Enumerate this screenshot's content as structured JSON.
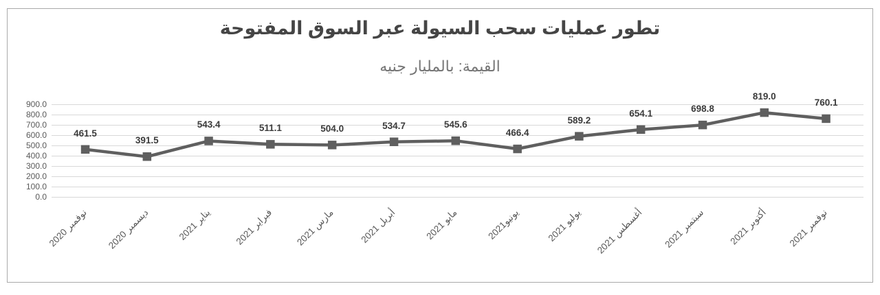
{
  "chart_data": {
    "type": "line",
    "title": "تطور عمليات سحب السيولة عبر السوق المفتوحة",
    "subtitle": "القيمة: بالمليار جنيه",
    "categories": [
      "نوفمبر 2020",
      "ديسمبر 2020",
      "يناير 2021",
      "فبراير 2021",
      "مارس 2021",
      "أبريل 2021",
      "مايو 2021",
      "يونيو2021",
      "يوليو 2021",
      "أغسطس 2021",
      "سبتمبر 2021",
      "أكتوبر 2021",
      "نوفمبر 2021"
    ],
    "values": [
      461.5,
      391.5,
      543.4,
      511.1,
      504.0,
      534.7,
      545.6,
      466.4,
      589.2,
      654.1,
      698.8,
      819.0,
      760.1
    ],
    "xlabel": "",
    "ylabel": "",
    "ylim": [
      0,
      900
    ],
    "y_step": 100,
    "y_tick_decimals": 1,
    "grid": true,
    "legend": "none",
    "marker": "square",
    "colors": {
      "line": "#5f5f5f",
      "marker": "#5f5f5f",
      "data_label": "#3b3b3b",
      "axis_label": "#595959",
      "gridline": "#d8d8d8",
      "frame_border": "#a9a9a9",
      "title": "#454545",
      "subtitle": "#757575",
      "background": "#ffffff"
    }
  }
}
